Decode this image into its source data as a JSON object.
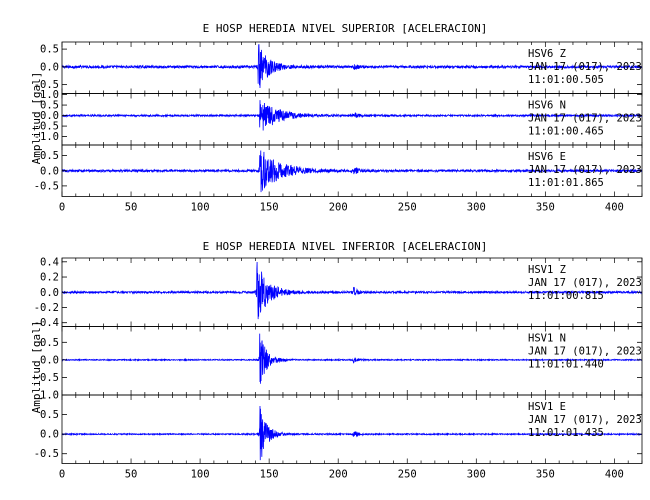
{
  "chart_data": [
    {
      "type": "line",
      "title": "E HOSP HEREDIA NIVEL SUPERIOR [ACELERACION]",
      "ylabel": "Amplitud [gal]",
      "xlabel": "",
      "xlim": [
        0,
        420
      ],
      "x_ticks": [
        "0",
        "50",
        "100",
        "150",
        "200",
        "250",
        "300",
        "350",
        "400"
      ],
      "line_color": "#0000ff",
      "panels": [
        {
          "station": "HSV6",
          "component": "Z",
          "date": "JAN 17 (017), 2023",
          "time": "11:01:00.505",
          "ylim": [
            -0.75,
            0.7
          ],
          "y_ticks": [
            0.5,
            0.0,
            -0.5
          ],
          "y_tick_labels": [
            "0.5",
            "0.0",
            "-0.5"
          ],
          "events": [
            {
              "t": 142,
              "peak": 0.7,
              "decay": 7
            },
            {
              "t": 211,
              "peak": 0.1,
              "decay": 3
            }
          ],
          "noise_level": 0.035
        },
        {
          "station": "HSV6",
          "component": "N",
          "date": "JAN 17 (017), 2023",
          "time": "11:01:00.465",
          "ylim": [
            -1.4,
            1.05
          ],
          "y_ticks": [
            1.0,
            0.5,
            0.0,
            -0.5,
            -1.0
          ],
          "y_tick_labels": [
            "1.0",
            "0.5",
            "0.0",
            "-0.5",
            "-1.0"
          ],
          "events": [
            {
              "t": 143,
              "peak": 0.9,
              "decay": 12
            },
            {
              "t": 211,
              "peak": 0.15,
              "decay": 4
            }
          ],
          "noise_level": 0.04
        },
        {
          "station": "HSV6",
          "component": "E",
          "date": "JAN 17 (017), 2023",
          "time": "11:01:01.865",
          "ylim": [
            -0.85,
            0.85
          ],
          "y_ticks": [
            0.5,
            0.0,
            -0.5
          ],
          "y_tick_labels": [
            "0.5",
            "0.0",
            "-0.5"
          ],
          "events": [
            {
              "t": 143,
              "peak": 0.75,
              "decay": 14
            },
            {
              "t": 211,
              "peak": 0.12,
              "decay": 4
            }
          ],
          "noise_level": 0.035
        }
      ]
    },
    {
      "type": "line",
      "title": "E HOSP HEREDIA NIVEL INFERIOR [ACELERACION]",
      "ylabel": "Amplitud [gal]",
      "xlabel": "",
      "xlim": [
        0,
        420
      ],
      "x_ticks": [
        "0",
        "50",
        "100",
        "150",
        "200",
        "250",
        "300",
        "350",
        "400"
      ],
      "line_color": "#0000ff",
      "panels": [
        {
          "station": "HSV1",
          "component": "Z",
          "date": "JAN 17 (017), 2023",
          "time": "11:01:00.815",
          "ylim": [
            -0.45,
            0.45
          ],
          "y_ticks": [
            0.4,
            0.2,
            0.0,
            -0.2,
            -0.4
          ],
          "y_tick_labels": [
            "0.4",
            "0.2",
            "0.0",
            "-0.2",
            "-0.4"
          ],
          "events": [
            {
              "t": 141,
              "peak": 0.42,
              "decay": 8
            },
            {
              "t": 211,
              "peak": 0.07,
              "decay": 3
            }
          ],
          "noise_level": 0.012
        },
        {
          "station": "HSV1",
          "component": "N",
          "date": "JAN 17 (017), 2023",
          "time": "11:01:01.440",
          "ylim": [
            -1.0,
            0.95
          ],
          "y_ticks": [
            0.5,
            0.0,
            -0.5
          ],
          "y_tick_labels": [
            "0.5",
            "0.0",
            "-0.5"
          ],
          "events": [
            {
              "t": 143,
              "peak": 0.8,
              "decay": 5
            },
            {
              "t": 211,
              "peak": 0.1,
              "decay": 3
            }
          ],
          "noise_level": 0.015
        },
        {
          "station": "HSV1",
          "component": "E",
          "date": "JAN 17 (017), 2023",
          "time": "11:01:01.435",
          "ylim": [
            -0.75,
            1.0
          ],
          "y_ticks": [
            1.0,
            0.5,
            0.0,
            -0.5
          ],
          "y_tick_labels": [
            "1.0",
            "0.5",
            "0.0",
            "-0.5"
          ],
          "events": [
            {
              "t": 143,
              "peak": 0.8,
              "decay": 5
            },
            {
              "t": 211,
              "peak": 0.1,
              "decay": 3
            }
          ],
          "noise_level": 0.015
        }
      ]
    }
  ]
}
